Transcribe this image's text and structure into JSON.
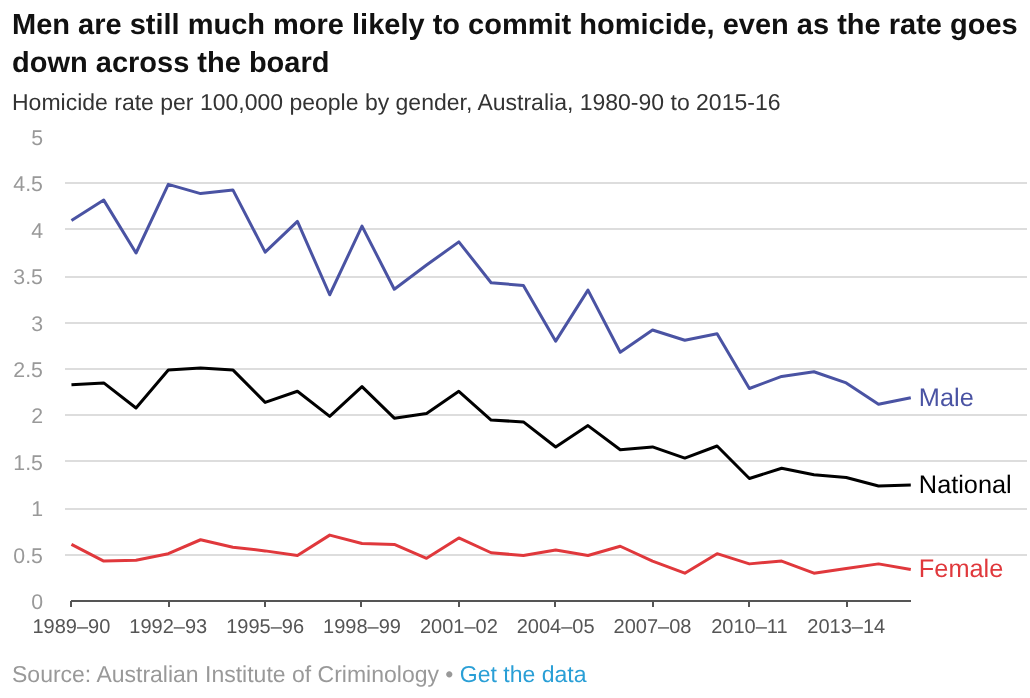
{
  "chart_data": {
    "type": "line",
    "title": "Men are still much more likely to commit homicide, even as the rate goes down across the board",
    "subtitle": "Homicide rate per 100,000 people by gender, Australia, 1980-90 to 2015-16",
    "categories": [
      "1989–90",
      null,
      null,
      "1992–93",
      null,
      null,
      "1995–96",
      null,
      null,
      "1998–99",
      null,
      null,
      "2001–02",
      null,
      null,
      "2004–05",
      null,
      null,
      "2007–08",
      null,
      null,
      "2010–11",
      null,
      null,
      "2013–14",
      null,
      null
    ],
    "series": [
      {
        "name": "Male",
        "color": "#4a53a3",
        "values": [
          4.1,
          4.32,
          3.75,
          4.49,
          4.39,
          4.43,
          3.76,
          4.09,
          3.3,
          4.04,
          3.36,
          3.62,
          3.87,
          3.43,
          3.4,
          2.8,
          3.35,
          2.68,
          2.92,
          2.81,
          2.88,
          2.29,
          2.42,
          2.47,
          2.35,
          2.12,
          2.19
        ]
      },
      {
        "name": "National",
        "color": "#000000",
        "values": [
          2.33,
          2.35,
          2.08,
          2.49,
          2.51,
          2.49,
          2.14,
          2.26,
          1.99,
          2.31,
          1.97,
          2.02,
          2.26,
          1.95,
          1.93,
          1.66,
          1.89,
          1.63,
          1.66,
          1.54,
          1.67,
          1.32,
          1.43,
          1.36,
          1.33,
          1.24,
          1.25
        ]
      },
      {
        "name": "Female",
        "color": "#e0383c",
        "values": [
          0.61,
          0.43,
          0.44,
          0.51,
          0.66,
          0.58,
          0.54,
          0.49,
          0.71,
          0.62,
          0.61,
          0.46,
          0.68,
          0.52,
          0.49,
          0.55,
          0.49,
          0.59,
          0.43,
          0.3,
          0.51,
          0.4,
          0.43,
          0.3,
          0.35,
          0.4,
          0.34
        ]
      }
    ],
    "ylim": [
      0,
      5
    ],
    "yticks": [
      0,
      0.5,
      1,
      1.5,
      2,
      2.5,
      3,
      3.5,
      4,
      4.5,
      5
    ],
    "grid": "y",
    "legend": false,
    "marker": "none",
    "line_style": "solid",
    "annotations": [
      "Source: Australian Institute of Criminology •",
      "Get the data"
    ]
  }
}
